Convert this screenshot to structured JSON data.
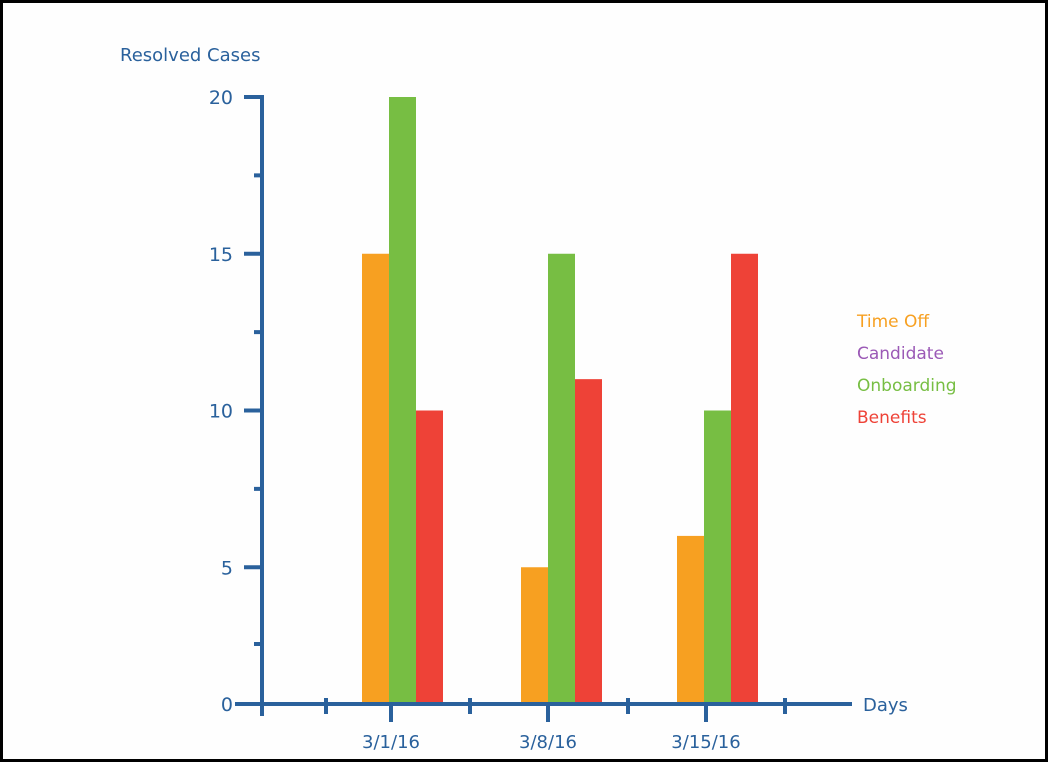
{
  "chart_data": {
    "type": "bar",
    "title": "",
    "ylabel": "Resolved Cases",
    "xlabel": "Days",
    "ylim": [
      0,
      20
    ],
    "yticks": [
      "0",
      "5",
      "10",
      "15",
      "20"
    ],
    "categories": [
      "3/1/16",
      "3/8/16",
      "3/15/16"
    ],
    "series": [
      {
        "name": "Time Off",
        "color": "#f7a021",
        "values": [
          15,
          5,
          6
        ]
      },
      {
        "name": "Candidate",
        "color": "#9b59b6",
        "values": [
          0,
          0,
          0
        ]
      },
      {
        "name": "Onboarding",
        "color": "#77be43",
        "values": [
          20,
          15,
          10
        ]
      },
      {
        "name": "Benefits",
        "color": "#ee4237",
        "values": [
          10,
          11,
          15
        ]
      }
    ],
    "legend": [
      "Time Off",
      "Candidate",
      "Onboarding",
      "Benefits"
    ],
    "legend_position": "right",
    "axis_color": "#2a619c",
    "grid": false
  }
}
